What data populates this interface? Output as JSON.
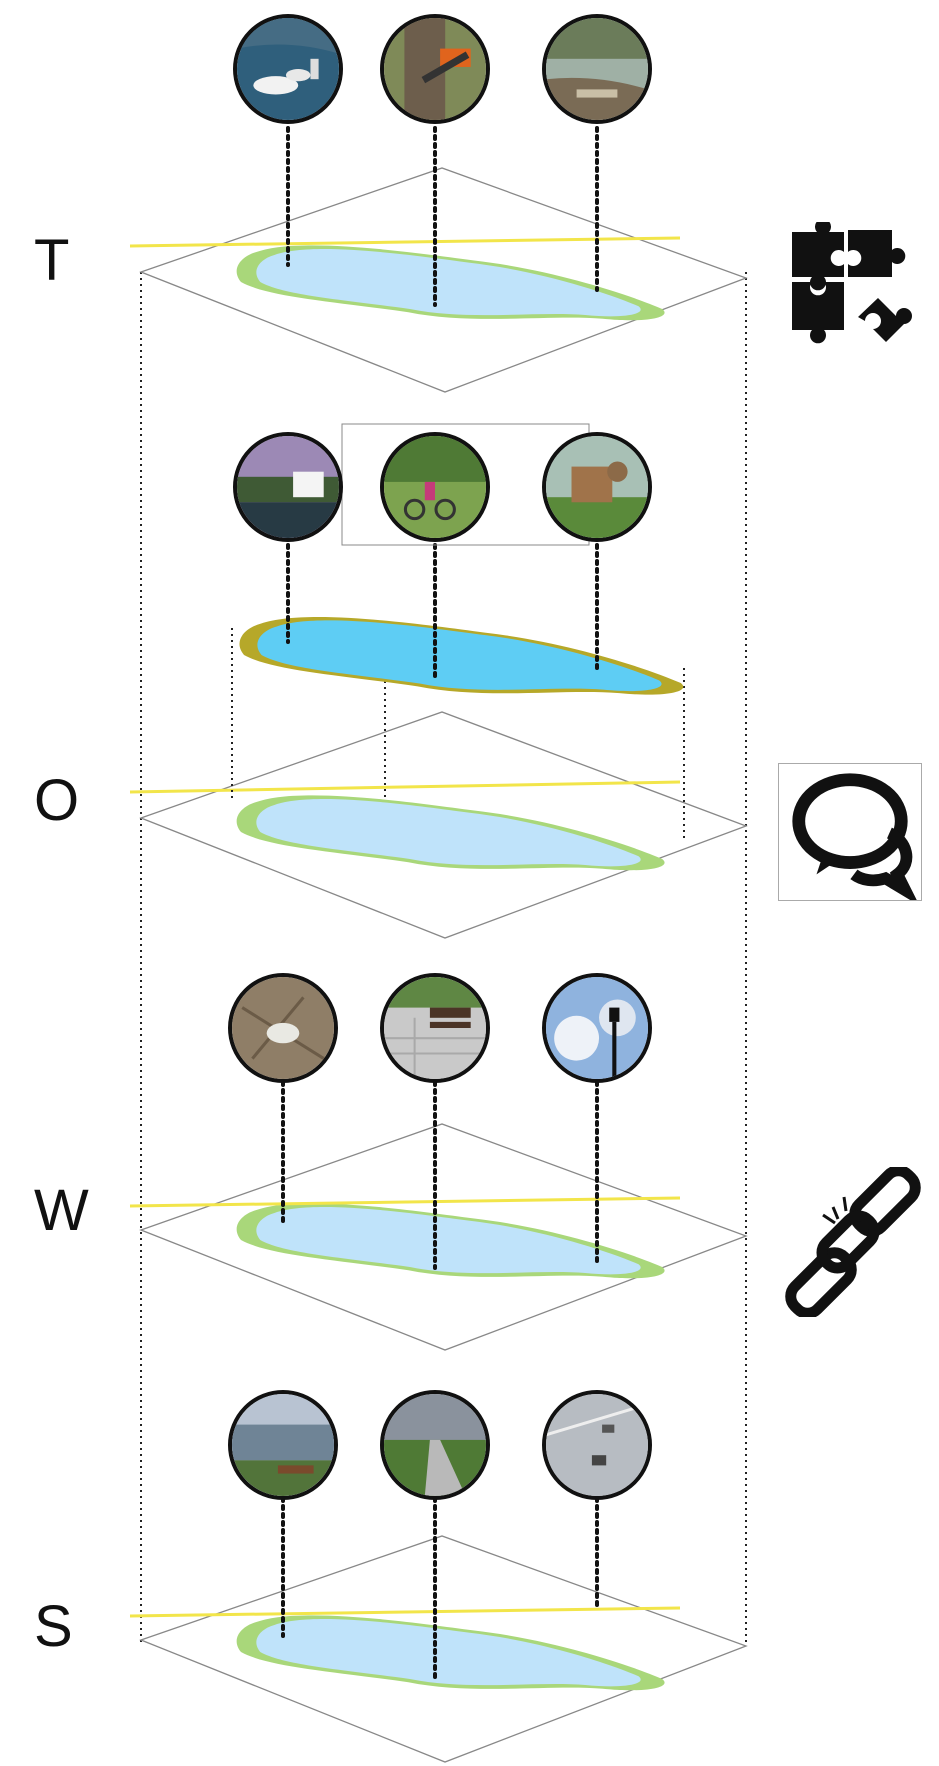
{
  "layers": [
    {
      "letter": "T",
      "theme_icon": "puzzle-pieces-icon",
      "photos": [
        "swans-on-water-photo",
        "chainsaw-cutting-tree-photo",
        "riverbank-litter-photo"
      ]
    },
    {
      "letter": "O",
      "theme_icon": "speech-bubbles-icon",
      "photos": [
        "outdoor-cinema-screen-photo",
        "family-cycling-photo",
        "wooden-playground-photo"
      ]
    },
    {
      "letter": "W",
      "theme_icon": "broken-chain-icon",
      "photos": [
        "dead-bird-on-ground-photo",
        "park-bench-on-paving-photo",
        "street-lamp-photo"
      ]
    },
    {
      "letter": "S",
      "theme_icon": null,
      "photos": [
        "lakeside-bench-photo",
        "park-footpath-photo",
        "road-with-cars-photo"
      ]
    }
  ],
  "colors": {
    "water": "#bfe3fa",
    "water_highlight": "#5ecdf4",
    "shore": "#a9d77a",
    "shore_highlight": "#b6a829",
    "axis_line": "#f2e54a",
    "plane_edge": "#777777",
    "ink": "#111111"
  }
}
